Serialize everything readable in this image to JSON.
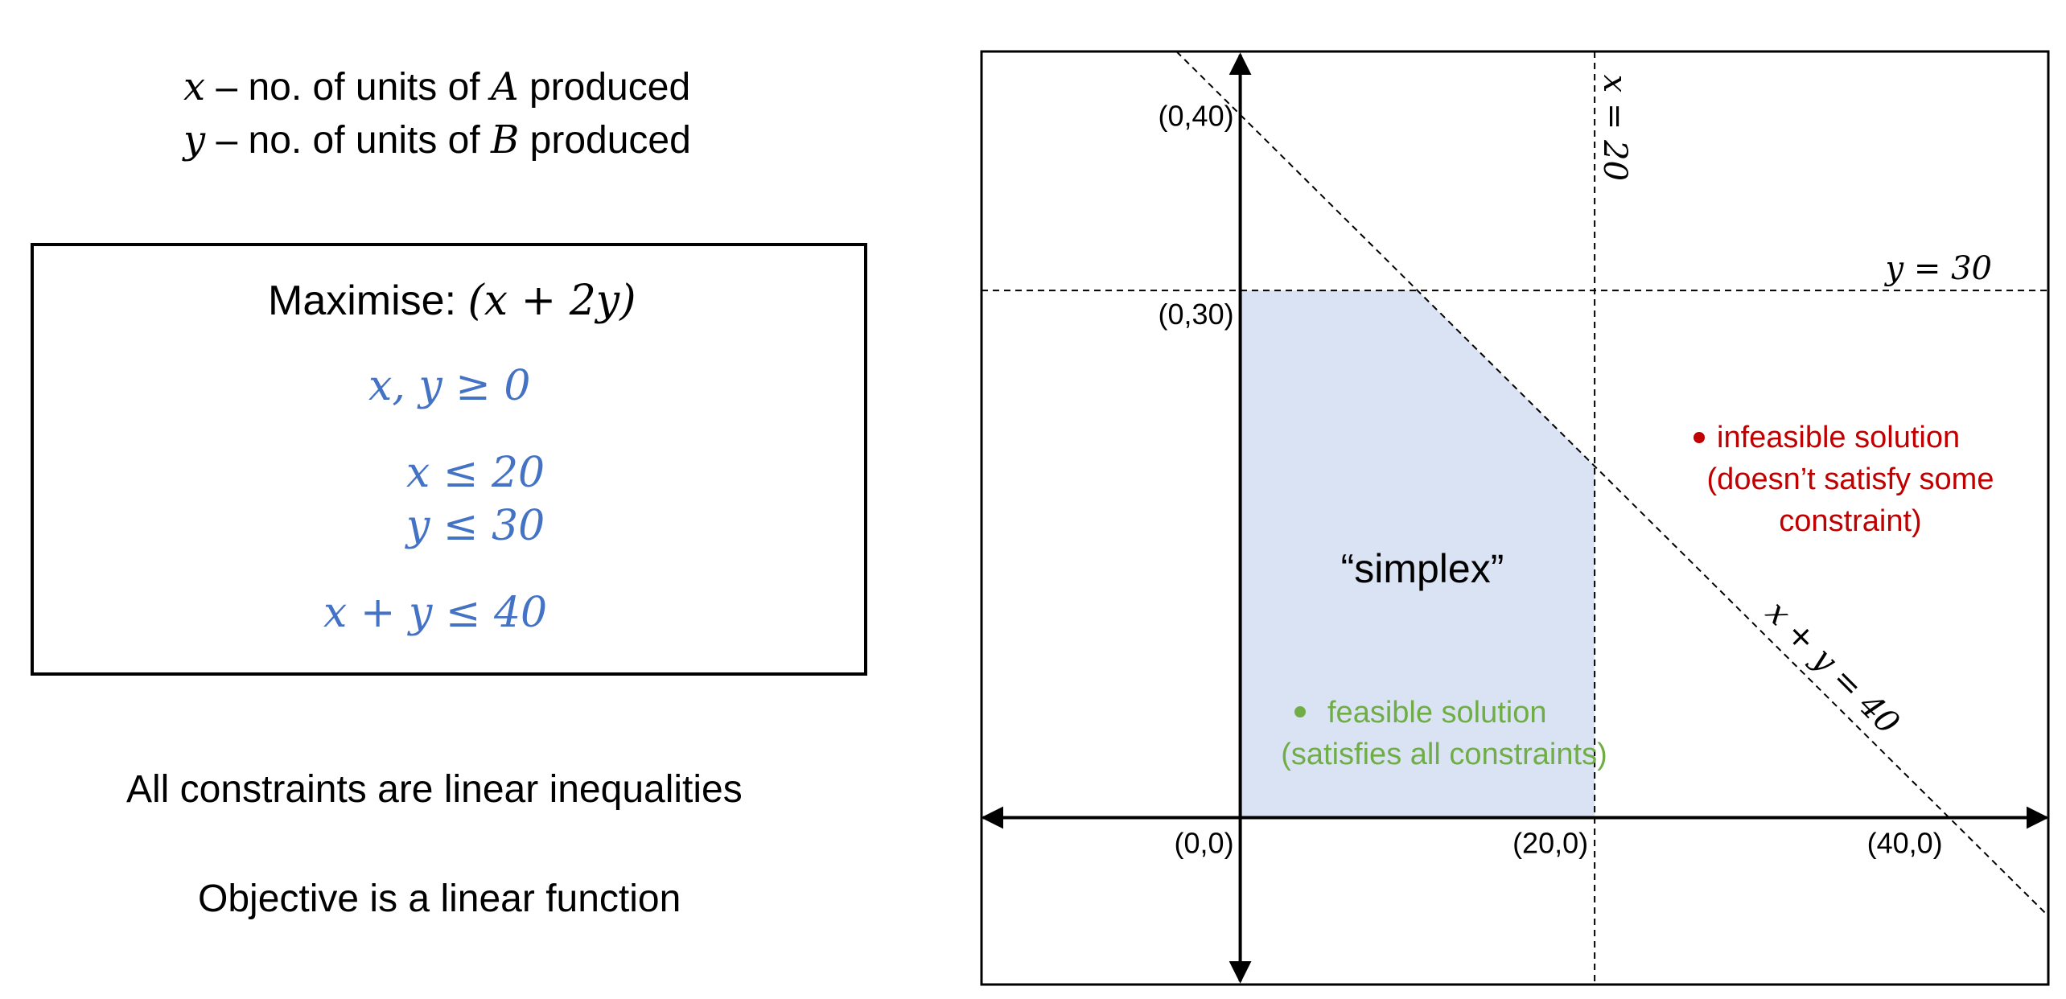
{
  "variables": {
    "x_var": "x",
    "x_desc_pre": " – no. of units of ",
    "x_product": "A",
    "x_desc_post": " produced",
    "y_var": "y",
    "y_desc_pre": " – no. of units of ",
    "y_product": "B",
    "y_desc_post": " produced"
  },
  "problem": {
    "objective_label": "Maximise: ",
    "objective_expr": "(x + 2y)",
    "constraints": [
      "x, y ≥ 0",
      "x ≤ 20",
      "y ≤ 30",
      "x + y ≤ 40"
    ]
  },
  "statements": {
    "linear_constraints": "All constraints are linear inequalities",
    "linear_objective": "Objective is a linear function"
  },
  "diagram": {
    "x_range": [
      -14.6,
      45.6
    ],
    "y_range": [
      -9.5,
      43.6
    ],
    "lines": [
      {
        "label": "x = 20"
      },
      {
        "label": "y = 30"
      },
      {
        "label": "x + y = 40"
      }
    ],
    "feasible_region": [
      [
        0,
        0
      ],
      [
        20,
        0
      ],
      [
        20,
        20
      ],
      [
        10,
        30
      ],
      [
        0,
        30
      ]
    ],
    "points": {
      "origin": "(0,0)",
      "x20": "(20,0)",
      "x40": "(40,0)",
      "y30": "(0,30)",
      "y40": "(0,40)"
    },
    "region_label": "“simplex”",
    "feasible_line1": "feasible solution",
    "feasible_line2": "(satisfies all constraints)",
    "infeasible_line1": "infeasible solution",
    "infeasible_line2": "(doesn’t satisfy some",
    "infeasible_line3": "constraint)",
    "colors": {
      "region_fill": "#DAE3F3",
      "constraint_text": "#4472C4",
      "feasible": "#70AD47",
      "infeasible": "#C00000"
    }
  }
}
